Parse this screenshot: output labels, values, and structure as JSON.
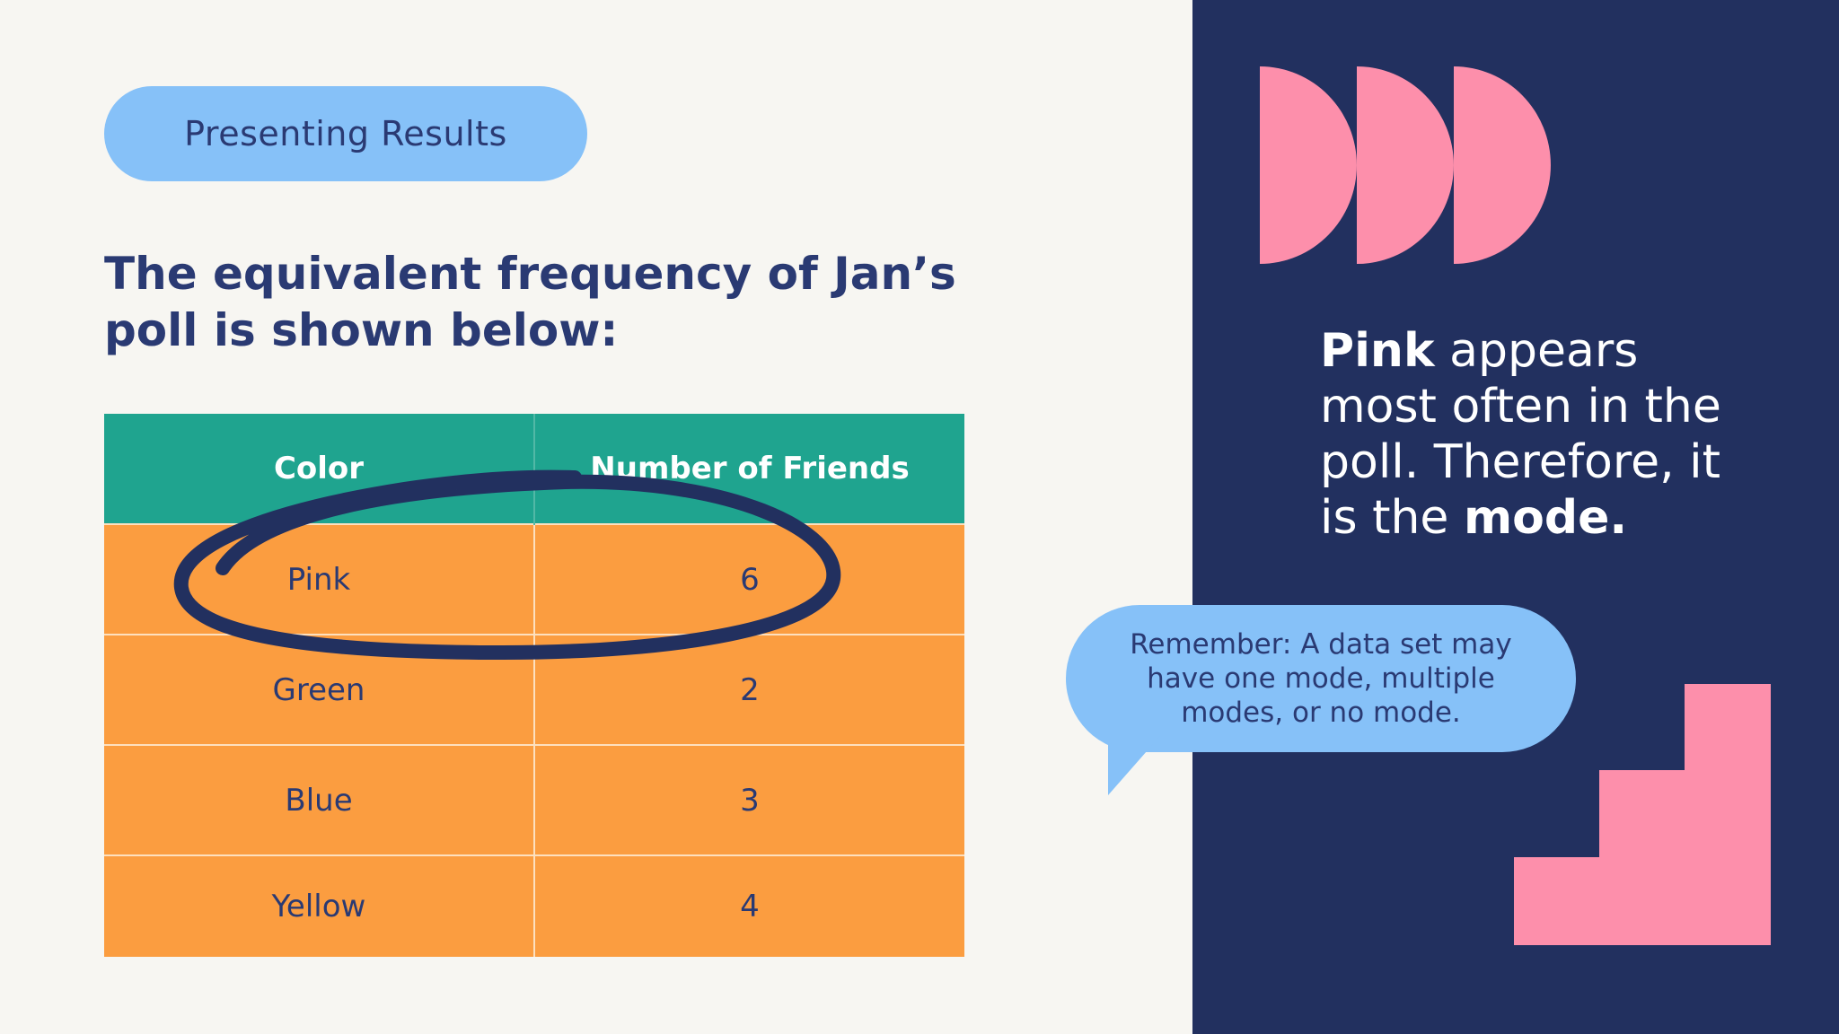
{
  "pill": {
    "label": "Presenting Results"
  },
  "heading": "The equivalent frequency of Jan’s poll is shown below:",
  "table": {
    "headers": [
      "Color",
      "Number of Friends"
    ],
    "rows": [
      [
        "Pink",
        "6"
      ],
      [
        "Green",
        "2"
      ],
      [
        "Blue",
        "3"
      ],
      [
        "Yellow",
        "4"
      ]
    ],
    "highlighted_row": "Pink"
  },
  "callout": {
    "part1_bold": "Pink",
    "part2": " appears most often in the poll. Therefore, it is the ",
    "part3_bold": "mode."
  },
  "bubble": {
    "text": "Remember: A data set may have one mode, multiple modes, or no mode."
  },
  "colors": {
    "background": "#f7f6f2",
    "navy_panel": "#22305f",
    "pill_blue": "#86c1f8",
    "header_teal": "#1fa48f",
    "cell_orange": "#fb9d40",
    "pink_shape": "#fd8fab",
    "text_navy": "#2a3a73",
    "circle_stroke": "#22305f"
  },
  "icons": {
    "top_right": "three-half-circle-shapes",
    "bottom_right": "staircase-shape",
    "table_mark": "hand-drawn-circle"
  }
}
